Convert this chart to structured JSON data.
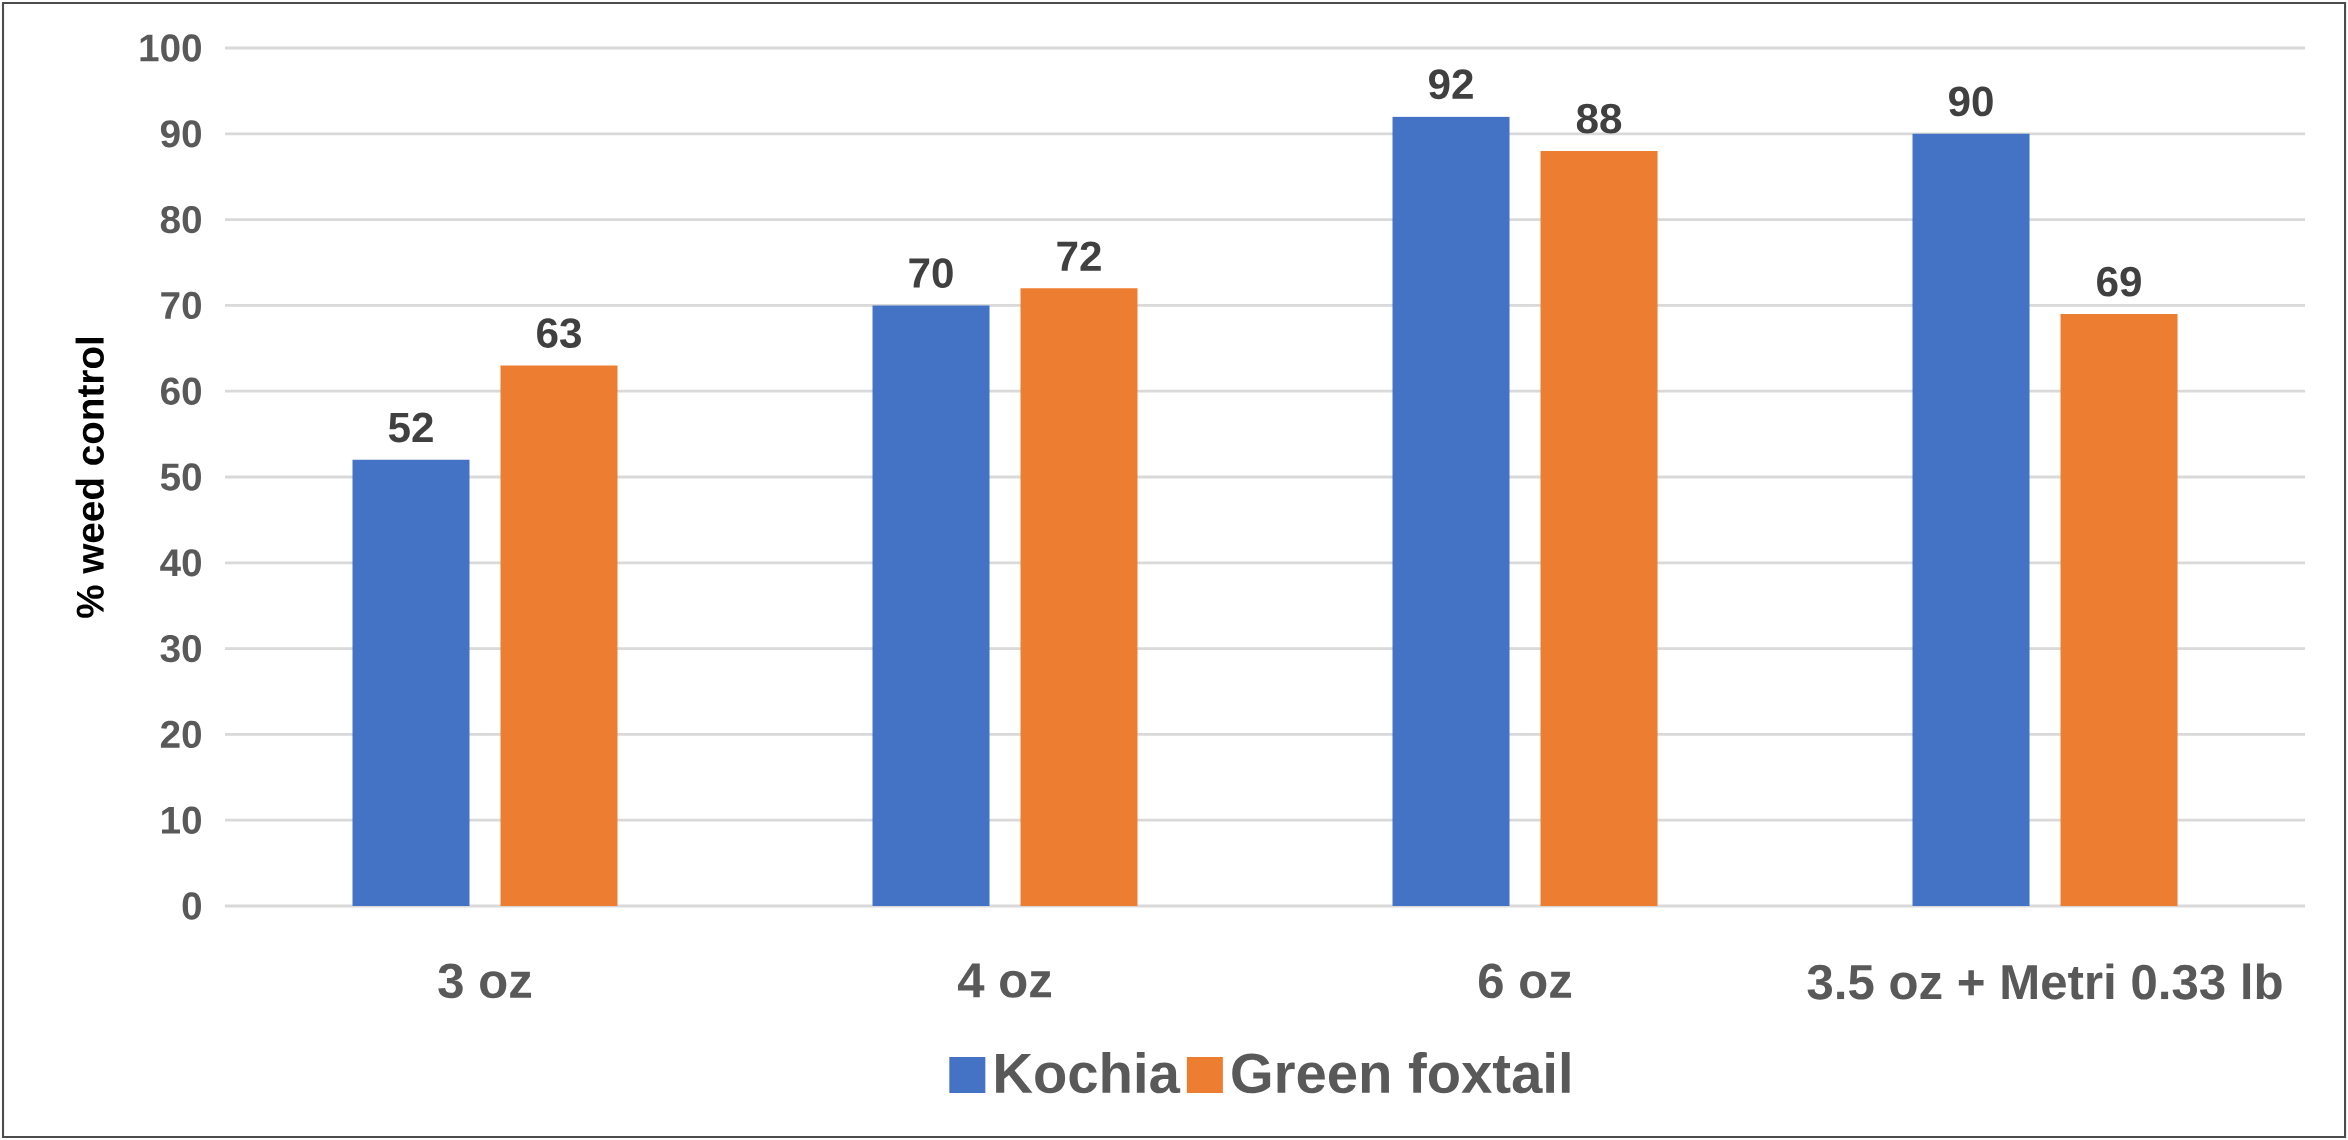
{
  "chart_data": {
    "type": "bar",
    "ylabel": "% weed control",
    "categories": [
      "3 oz",
      "4 oz",
      "6 oz",
      "3.5 oz + Metri 0.33 lb"
    ],
    "series": [
      {
        "name": "Kochia",
        "color": "#4472c4",
        "values": [
          52,
          70,
          92,
          90
        ]
      },
      {
        "name": "Green foxtail",
        "color": "#ed7d31",
        "values": [
          63,
          72,
          88,
          69
        ]
      }
    ],
    "ylim": [
      0,
      100
    ],
    "yticks": [
      0,
      10,
      20,
      30,
      40,
      50,
      60,
      70,
      80,
      90,
      100
    ],
    "grid": "y",
    "legend": "bottom",
    "data_labels": true
  }
}
